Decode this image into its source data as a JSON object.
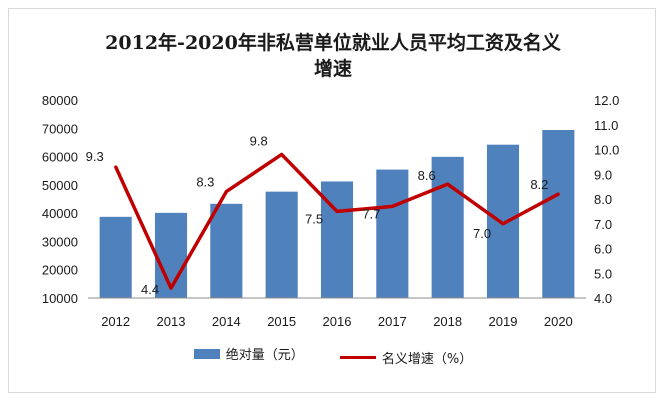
{
  "chart_data": {
    "type": "bar+line",
    "title": "2012年-2020年非私营单位就业人员平均工资及名义增速",
    "categories": [
      "2012",
      "2013",
      "2014",
      "2015",
      "2016",
      "2017",
      "2018",
      "2019",
      "2020"
    ],
    "series": [
      {
        "name": "绝对量（元）",
        "type": "bar",
        "axis": "left",
        "color": "#4f81bd",
        "values": [
          38700,
          40100,
          43300,
          47600,
          51200,
          55400,
          59900,
          64200,
          69400
        ]
      },
      {
        "name": "名义增速（%）",
        "type": "line",
        "axis": "right",
        "color": "#c00000",
        "values": [
          9.3,
          4.4,
          8.3,
          9.8,
          7.5,
          7.7,
          8.6,
          7.0,
          8.2
        ],
        "labels": [
          "9.3",
          "4.4",
          "8.3",
          "9.8",
          "7.5",
          "7.7",
          "8.6",
          "7.0",
          "8.2"
        ]
      }
    ],
    "y_left": {
      "min": 10000,
      "max": 80000,
      "step": 10000,
      "ticks": [
        "10000",
        "20000",
        "30000",
        "40000",
        "50000",
        "60000",
        "70000",
        "80000"
      ]
    },
    "y_right": {
      "min": 4.0,
      "max": 12.0,
      "step": 1.0,
      "ticks": [
        "4.0",
        "5.0",
        "6.0",
        "7.0",
        "8.0",
        "9.0",
        "10.0",
        "11.0",
        "12.0"
      ]
    },
    "legend_position": "bottom",
    "grid": false
  }
}
